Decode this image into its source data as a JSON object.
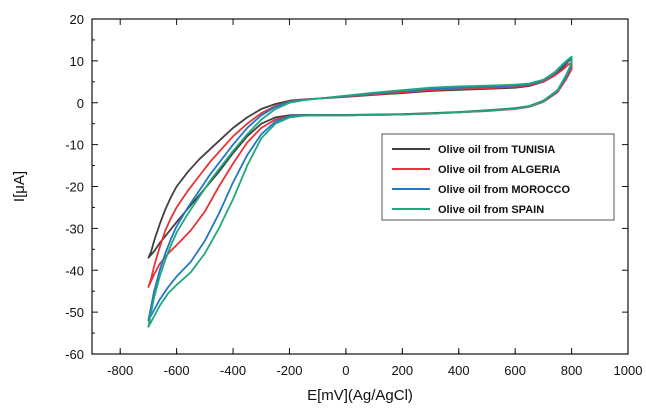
{
  "chart_data": {
    "type": "line",
    "title": "",
    "xlabel": "E[mV](Ag/AgCl)",
    "ylabel": "I[μA]",
    "xlim": [
      -900,
      1000
    ],
    "ylim": [
      -60,
      20
    ],
    "xticks": [
      -800,
      -600,
      -400,
      -200,
      0,
      200,
      400,
      600,
      800,
      1000
    ],
    "yticks": [
      -60,
      -50,
      -40,
      -30,
      -20,
      -10,
      0,
      10,
      20
    ],
    "grid": false,
    "legend_position": "center-right",
    "series": [
      {
        "name": "Olive oil from TUNISIA",
        "color": "#404040",
        "x": [
          -700,
          -690,
          -680,
          -660,
          -640,
          -620,
          -600,
          -560,
          -520,
          -480,
          -440,
          -400,
          -350,
          -300,
          -250,
          -200,
          -150,
          -100,
          0,
          100,
          200,
          300,
          400,
          500,
          600,
          650,
          700,
          740,
          770,
          790,
          800,
          800,
          780,
          750,
          700,
          650,
          600,
          500,
          400,
          300,
          200,
          100,
          0,
          -100,
          -150,
          -200,
          -250,
          -300,
          -350,
          -400,
          -450,
          -500,
          -550,
          -600,
          -630,
          -660,
          -680,
          -700
        ],
        "y": [
          -37,
          -35.5,
          -33,
          -29,
          -25.5,
          -22.5,
          -20,
          -16.5,
          -13.5,
          -11,
          -8.5,
          -6,
          -3.5,
          -1.5,
          -0.3,
          0.5,
          0.8,
          1.0,
          1.4,
          1.9,
          2.3,
          2.8,
          3.1,
          3.3,
          3.6,
          4.0,
          5.0,
          6.5,
          8.5,
          10.0,
          10.5,
          9.0,
          6.0,
          3.0,
          0.5,
          -0.8,
          -1.3,
          -1.8,
          -2.2,
          -2.5,
          -2.7,
          -2.8,
          -2.9,
          -2.9,
          -2.9,
          -3.0,
          -3.5,
          -5.0,
          -8.0,
          -12.0,
          -16.5,
          -20.5,
          -24.5,
          -28.5,
          -31,
          -33.5,
          -35.5,
          -37
        ]
      },
      {
        "name": "Olive oil from ALGERIA",
        "color": "#e8323a",
        "x": [
          -700,
          -690,
          -680,
          -660,
          -640,
          -620,
          -600,
          -560,
          -520,
          -480,
          -440,
          -400,
          -350,
          -300,
          -250,
          -200,
          -150,
          -100,
          0,
          100,
          200,
          300,
          400,
          500,
          600,
          650,
          700,
          740,
          770,
          790,
          800,
          800,
          780,
          750,
          700,
          650,
          600,
          500,
          400,
          300,
          200,
          100,
          0,
          -100,
          -150,
          -200,
          -250,
          -300,
          -350,
          -400,
          -450,
          -500,
          -550,
          -600,
          -630,
          -660,
          -680,
          -700
        ],
        "y": [
          -44,
          -42,
          -39,
          -34.5,
          -30.5,
          -27.5,
          -25,
          -21,
          -17.5,
          -14,
          -11,
          -8,
          -5,
          -2.5,
          -0.8,
          0.3,
          0.8,
          1.0,
          1.5,
          2.0,
          2.5,
          3.0,
          3.3,
          3.5,
          3.8,
          4.2,
          5.0,
          6.5,
          8.0,
          9.2,
          9.5,
          8.0,
          5.5,
          2.5,
          0.2,
          -1.0,
          -1.5,
          -2.0,
          -2.3,
          -2.6,
          -2.8,
          -2.9,
          -3.0,
          -3.0,
          -3.0,
          -3.2,
          -4.0,
          -6.0,
          -9.5,
          -14.5,
          -20,
          -26,
          -30.5,
          -34,
          -36,
          -38.5,
          -41,
          -44
        ]
      },
      {
        "name": "Olive oil from MOROCCO",
        "color": "#2476c8",
        "x": [
          -700,
          -690,
          -680,
          -660,
          -640,
          -620,
          -600,
          -560,
          -520,
          -480,
          -440,
          -400,
          -350,
          -300,
          -250,
          -200,
          -150,
          -100,
          0,
          100,
          200,
          300,
          400,
          500,
          600,
          650,
          700,
          740,
          770,
          790,
          800,
          800,
          780,
          750,
          700,
          650,
          600,
          500,
          400,
          300,
          200,
          100,
          0,
          -100,
          -150,
          -200,
          -250,
          -300,
          -350,
          -400,
          -450,
          -500,
          -550,
          -600,
          -630,
          -660,
          -680,
          -700
        ],
        "y": [
          -52,
          -48.5,
          -45,
          -40,
          -36,
          -32.5,
          -29.5,
          -25,
          -21,
          -17,
          -13.5,
          -10,
          -6,
          -3,
          -1.0,
          0.2,
          0.7,
          1.0,
          1.6,
          2.2,
          2.8,
          3.3,
          3.6,
          3.8,
          4.1,
          4.4,
          5.3,
          7.0,
          9.0,
          10.2,
          10.5,
          9.0,
          6.0,
          2.8,
          0.3,
          -0.9,
          -1.4,
          -1.9,
          -2.3,
          -2.6,
          -2.8,
          -2.9,
          -3.0,
          -3.0,
          -3.0,
          -3.2,
          -4.5,
          -7.5,
          -12.5,
          -19,
          -26.5,
          -33,
          -38,
          -41.5,
          -44,
          -47,
          -49.5,
          -52
        ]
      },
      {
        "name": "Olive oil from SPAIN",
        "color": "#21a87a",
        "x": [
          -700,
          -690,
          -680,
          -660,
          -640,
          -620,
          -600,
          -560,
          -520,
          -480,
          -440,
          -400,
          -350,
          -300,
          -250,
          -200,
          -150,
          -100,
          0,
          100,
          200,
          300,
          400,
          500,
          600,
          650,
          700,
          740,
          770,
          790,
          800,
          800,
          780,
          750,
          700,
          650,
          600,
          500,
          400,
          300,
          200,
          100,
          0,
          -100,
          -150,
          -200,
          -250,
          -300,
          -350,
          -400,
          -450,
          -500,
          -550,
          -600,
          -630,
          -660,
          -680,
          -700
        ],
        "y": [
          -53.5,
          -50,
          -46.5,
          -41.5,
          -37.5,
          -34,
          -31,
          -26.5,
          -22.5,
          -18.5,
          -15,
          -11.5,
          -7.5,
          -4,
          -1.5,
          0.0,
          0.6,
          1.0,
          1.7,
          2.4,
          3.0,
          3.6,
          3.9,
          4.1,
          4.3,
          4.6,
          5.5,
          7.3,
          9.3,
          10.5,
          11.0,
          9.5,
          6.5,
          3.0,
          0.4,
          -0.9,
          -1.4,
          -1.9,
          -2.3,
          -2.6,
          -2.8,
          -2.9,
          -3.0,
          -3.0,
          -3.1,
          -3.5,
          -5.0,
          -8.5,
          -15,
          -23,
          -30,
          -36,
          -40.5,
          -43.5,
          -45.5,
          -48.5,
          -51,
          -53.5
        ]
      }
    ]
  }
}
